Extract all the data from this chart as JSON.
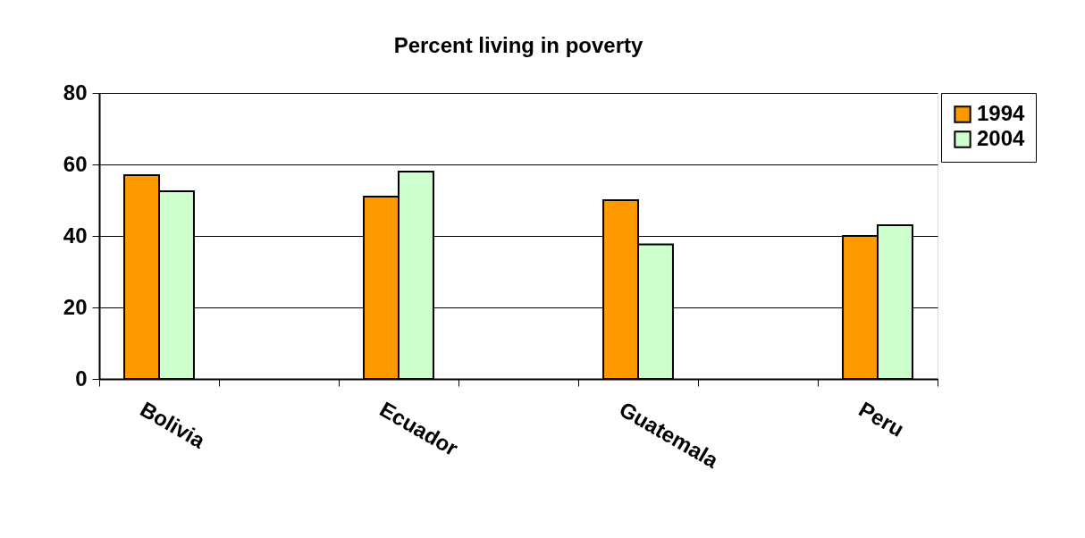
{
  "chart_data": {
    "type": "bar",
    "title": "Percent living in poverty",
    "categories": [
      "Bolivia",
      null,
      "Ecuador",
      null,
      "Guatemala",
      null,
      "Peru"
    ],
    "series": [
      {
        "name": "1994",
        "color": "#ff9900",
        "values": [
          57,
          null,
          51,
          null,
          50,
          null,
          40
        ]
      },
      {
        "name": "2004",
        "color": "#ccffcc",
        "values": [
          52.5,
          null,
          58,
          null,
          37.6,
          null,
          43
        ]
      }
    ],
    "ylim": [
      0,
      80
    ],
    "yticks": [
      0,
      20,
      40,
      60,
      80
    ],
    "grid": "y",
    "legend": "right"
  }
}
